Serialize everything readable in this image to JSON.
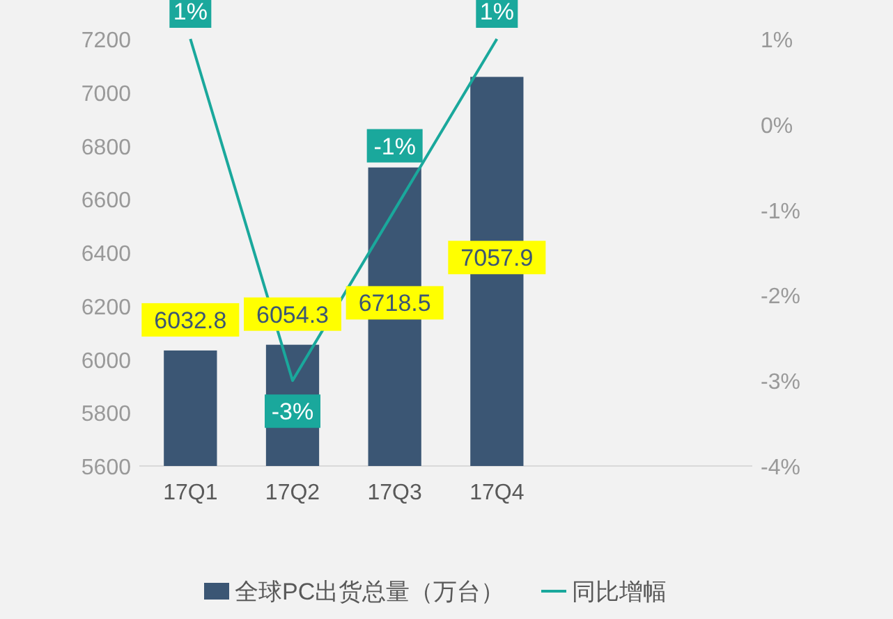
{
  "chart_data": {
    "type": "bar",
    "categories": [
      "17Q1",
      "17Q2",
      "17Q3",
      "17Q4",
      null,
      null
    ],
    "series": [
      {
        "name": "全球PC出货总量（万台）",
        "color": "#3b5674",
        "values": [
          6032.8,
          6054.3,
          6718.5,
          7057.9,
          null,
          null
        ],
        "value_labels": [
          "6032.8",
          "6054.3",
          "6718.5",
          "7057.9",
          null,
          null
        ]
      },
      {
        "name": "同比增幅",
        "type": "line",
        "axis": "y2",
        "color": "#1aa89c",
        "values": [
          1,
          -3,
          -1,
          1,
          null,
          null
        ],
        "value_labels": [
          "1%",
          "-3%",
          "-1%",
          "1%",
          null,
          null
        ]
      }
    ],
    "ylim": [
      5600,
      7200
    ],
    "yticks": [
      5600,
      5800,
      6000,
      6200,
      6400,
      6600,
      6800,
      7000,
      7200
    ],
    "y2lim": [
      -4,
      1
    ],
    "y2ticks": [
      {
        "value": -4,
        "label": "-4%"
      },
      {
        "value": -3,
        "label": "-3%"
      },
      {
        "value": -2,
        "label": "-2%"
      },
      {
        "value": -1,
        "label": "-1%"
      },
      {
        "value": 0,
        "label": "0%"
      },
      {
        "value": 1,
        "label": "1%"
      }
    ],
    "grid": false,
    "legend": "bottom",
    "marker": "none",
    "line_style": "solid"
  }
}
